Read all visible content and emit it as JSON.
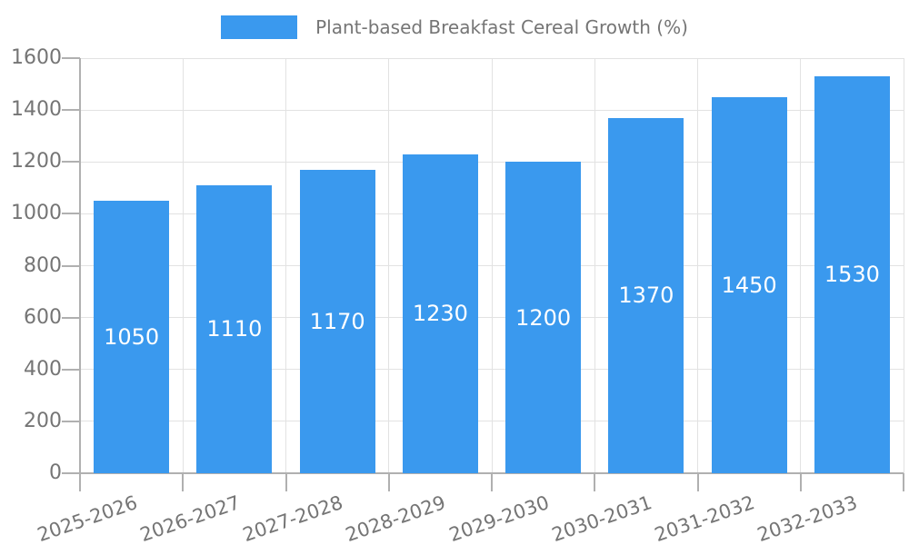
{
  "chart_data": {
    "type": "bar",
    "title": "Plant-based Breakfast Cereal Growth (%)",
    "legend_entries": [
      "Plant-based Breakfast Cereal Growth (%)"
    ],
    "legend_position": "top-center",
    "categories": [
      "2025-2026",
      "2026-2027",
      "2027-2028",
      "2028-2029",
      "2029-2030",
      "2030-2031",
      "2031-2032",
      "2032-2033"
    ],
    "values": [
      1050,
      1110,
      1170,
      1230,
      1200,
      1370,
      1450,
      1530
    ],
    "bar_value_labels": [
      "1050",
      "1110",
      "1170",
      "1230",
      "1200",
      "1370",
      "1450",
      "1530"
    ],
    "y_tick_labels": [
      "0",
      "200",
      "400",
      "600",
      "800",
      "1000",
      "1200",
      "1400",
      "1600"
    ],
    "xlabel": "",
    "ylabel": "",
    "ylim": [
      0,
      1600
    ],
    "ytick_step": 200,
    "grid": true,
    "x_label_rotation_deg": -19,
    "bar_label_placement": "inside-middle",
    "colors": {
      "bar": "#3a99ee",
      "bar_label": "#ffffff",
      "axis_text": "#757575",
      "grid_line": "#e2e2e2",
      "axis_line": "#b0b0b0"
    }
  }
}
